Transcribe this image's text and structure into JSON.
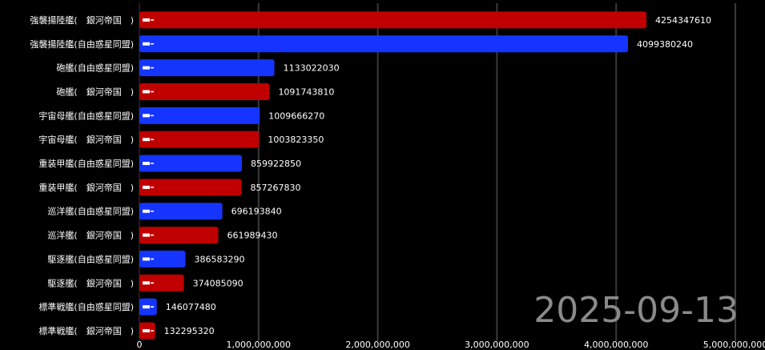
{
  "chart_data": {
    "type": "bar",
    "orientation": "horizontal",
    "date": "2025-09-13",
    "xlim": [
      0,
      5000000000
    ],
    "xticks": [
      0,
      1000000000,
      2000000000,
      3000000000,
      4000000000,
      5000000000
    ],
    "xtick_labels": [
      "0",
      "1,000,000,000",
      "2,000,000,000",
      "3,000,000,000",
      "4,000,000,000",
      "5,000,000,000"
    ],
    "grid": true,
    "colors": {
      "galactic_empire": "#c00000",
      "free_planets_alliance": "#1535ff",
      "background": "#000000",
      "grid": "#3a3a3a",
      "date": "#8a8a8a"
    },
    "bars": [
      {
        "label": "強襲揚陸艦(　銀河帝国　)",
        "value": 4254347610,
        "faction": "galactic_empire",
        "icon": "assault-ship-icon"
      },
      {
        "label": "強襲揚陸艦(自由惑星同盟)",
        "value": 4099380240,
        "faction": "free_planets_alliance",
        "icon": "assault-ship-icon"
      },
      {
        "label": "砲艦(自由惑星同盟)",
        "value": 1133022030,
        "faction": "free_planets_alliance",
        "icon": "gunboat-icon"
      },
      {
        "label": "砲艦(　銀河帝国　)",
        "value": 1091743810,
        "faction": "galactic_empire",
        "icon": "gunboat-icon"
      },
      {
        "label": "宇宙母艦(自由惑星同盟)",
        "value": 1009666270,
        "faction": "free_planets_alliance",
        "icon": "carrier-icon"
      },
      {
        "label": "宇宙母艦(　銀河帝国　)",
        "value": 1003823350,
        "faction": "galactic_empire",
        "icon": "carrier-icon"
      },
      {
        "label": "重装甲艦(自由惑星同盟)",
        "value": 859922850,
        "faction": "free_planets_alliance",
        "icon": "armored-ship-icon"
      },
      {
        "label": "重装甲艦(　銀河帝国　)",
        "value": 857267830,
        "faction": "galactic_empire",
        "icon": "armored-ship-icon"
      },
      {
        "label": "巡洋艦(自由惑星同盟)",
        "value": 696193840,
        "faction": "free_planets_alliance",
        "icon": "cruiser-icon"
      },
      {
        "label": "巡洋艦(　銀河帝国　)",
        "value": 661989430,
        "faction": "galactic_empire",
        "icon": "cruiser-icon"
      },
      {
        "label": "駆逐艦(自由惑星同盟)",
        "value": 386583290,
        "faction": "free_planets_alliance",
        "icon": "destroyer-icon"
      },
      {
        "label": "駆逐艦(　銀河帝国　)",
        "value": 374085090,
        "faction": "galactic_empire",
        "icon": "destroyer-icon"
      },
      {
        "label": "標準戦艦(自由惑星同盟)",
        "value": 146077480,
        "faction": "free_planets_alliance",
        "icon": "battleship-icon"
      },
      {
        "label": "標準戦艦(　銀河帝国　)",
        "value": 132295320,
        "faction": "galactic_empire",
        "icon": "battleship-icon"
      }
    ]
  }
}
